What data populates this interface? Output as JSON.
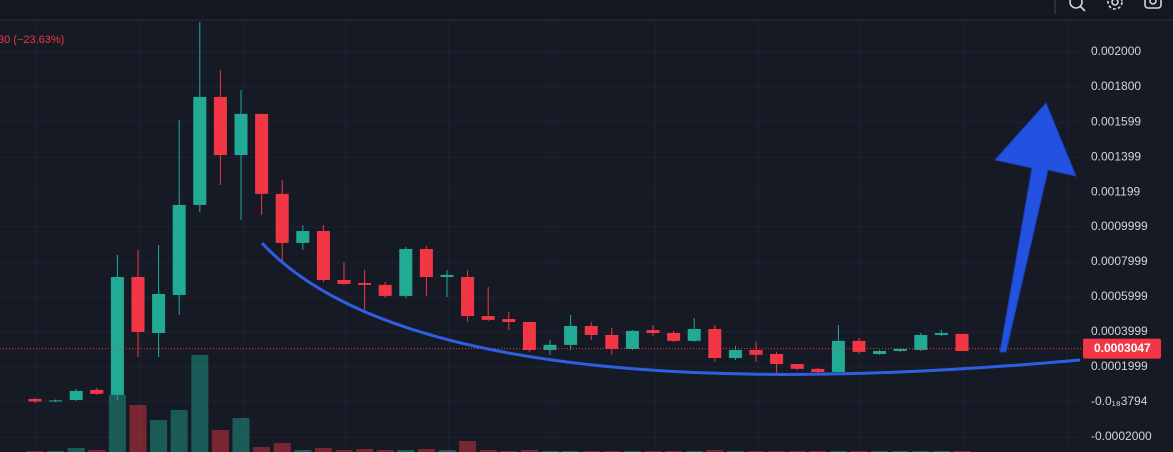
{
  "chart_data": {
    "type": "candlestick",
    "change_label": "30 (−23.63%)",
    "last_price": {
      "value": 0.0003047,
      "label": "0.0003047"
    },
    "up_color": "#22ab94",
    "down_color": "#f23645",
    "open": [
      1.7e-05,
      3e-06,
      1.1e-05,
      6.9e-05,
      4e-05,
      0.000714,
      0.000394,
      0.000611,
      0.001126,
      0.001743,
      0.001411,
      0.001646,
      0.001189,
      0.000909,
      0.000977,
      0.000697,
      0.00068,
      0.000669,
      0.000606,
      0.000874,
      0.000714,
      0.000714,
      0.000491,
      0.000474,
      0.000457,
      0.000297,
      0.000326,
      0.000434,
      0.000383,
      0.000303,
      0.000411,
      0.000394,
      0.000349,
      0.000417,
      0.000251,
      0.000297,
      0.000274,
      0.000217,
      0.000189,
      0.000171,
      0.000349,
      0.000274,
      0.000291,
      0.000297,
      0.000383,
      0.000389
    ],
    "high": [
      2.3e-05,
      1.4e-05,
      7.4e-05,
      8e-05,
      0.00084,
      0.000869,
      0.000897,
      0.001611,
      0.002171,
      0.001897,
      0.001783,
      0.001646,
      0.001269,
      0.001011,
      0.001011,
      0.0008,
      0.000754,
      0.000686,
      0.000886,
      0.000891,
      0.000754,
      0.000754,
      0.000657,
      0.000514,
      0.000457,
      0.000354,
      0.000497,
      0.000457,
      0.000423,
      0.000411,
      0.00044,
      0.000406,
      0.00048,
      0.00044,
      0.00032,
      0.000343,
      0.000286,
      0.000217,
      0.000194,
      0.00044,
      0.000366,
      0.000297,
      0.000309,
      0.000394,
      0.000411,
      0.000389
    ],
    "low": [
      -6e-06,
      0.0,
      6e-06,
      4e-05,
      1.1e-05,
      0.000257,
      0.000257,
      0.000497,
      0.001086,
      0.00124,
      0.00104,
      0.001069,
      0.0008,
      0.000869,
      0.000686,
      0.000669,
      0.000526,
      0.000594,
      0.000594,
      0.000606,
      0.0006,
      0.000457,
      0.000463,
      0.000411,
      0.000286,
      0.000269,
      0.000297,
      0.000354,
      0.000269,
      0.000297,
      0.000377,
      0.000343,
      0.000343,
      0.000229,
      0.00024,
      0.000229,
      0.000166,
      0.000183,
      0.000166,
      0.000166,
      0.000274,
      0.000269,
      0.000286,
      0.000291,
      0.000377,
      0.000291
    ],
    "close": [
      3e-06,
      9e-06,
      6.3e-05,
      4.6e-05,
      0.000714,
      0.0004,
      0.000617,
      0.001126,
      0.001743,
      0.001411,
      0.001646,
      0.001189,
      0.000909,
      0.000977,
      0.000697,
      0.000674,
      0.000669,
      0.000606,
      0.000874,
      0.000714,
      0.000726,
      0.000491,
      0.000469,
      0.000457,
      0.000297,
      0.000326,
      0.000434,
      0.000383,
      0.000303,
      0.000406,
      0.000394,
      0.000349,
      0.000417,
      0.000251,
      0.000297,
      0.000269,
      0.000217,
      0.000189,
      0.000171,
      0.000349,
      0.000286,
      0.000291,
      0.000303,
      0.000383,
      0.000394,
      0.000291
    ],
    "volume": [
      1,
      1,
      4,
      2,
      57,
      47,
      32,
      42,
      97,
      22,
      34,
      5,
      9,
      2,
      4,
      2,
      3,
      2,
      2,
      3,
      2,
      11,
      2,
      1,
      2,
      1,
      1,
      1,
      1,
      1,
      1,
      1,
      1,
      2,
      1,
      1,
      1,
      1,
      1,
      1,
      1,
      1,
      1,
      1,
      1,
      1
    ],
    "ylim": [
      -0.000286,
      0.002297
    ],
    "yticks": [
      {
        "value": 0.002,
        "label": "0.002000"
      },
      {
        "value": 0.0018,
        "label": "0.001800"
      },
      0.001599,
      0.001399,
      0.001199,
      0.0009999,
      0.0007999,
      0.0005999,
      0.0003999,
      0.0001999,
      {
        "value": -3.794e-22,
        "label": "-0.0₁₈3794"
      },
      {
        "value": -0.0002,
        "label": "-0.0002000"
      }
    ],
    "grid": true
  }
}
